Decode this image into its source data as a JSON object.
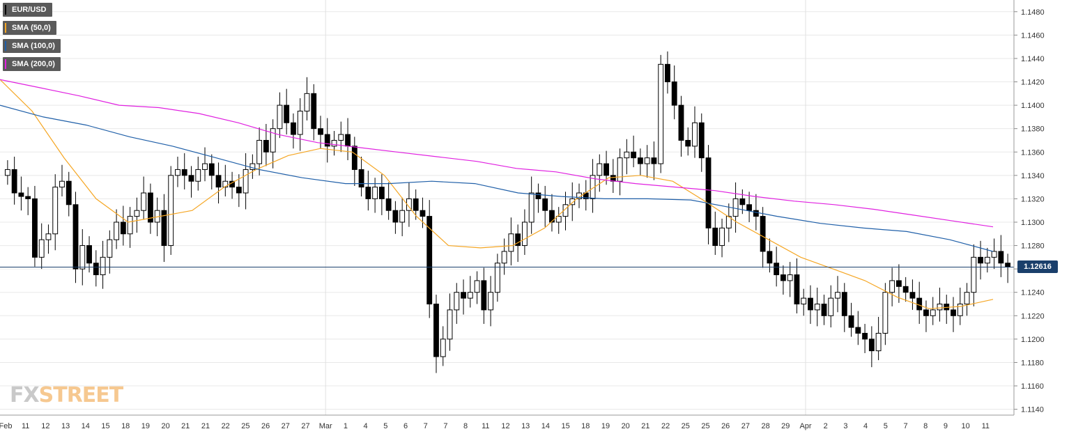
{
  "legend": [
    {
      "label": "EUR/USD",
      "color": "#000000"
    },
    {
      "label": "SMA (50,0)",
      "color": "#f5a623"
    },
    {
      "label": "SMA (100,0)",
      "color": "#1f5fa8"
    },
    {
      "label": "SMA (200,0)",
      "color": "#e020e0"
    }
  ],
  "logo": {
    "part1": "FX",
    "part2": "STREET"
  },
  "current_price_label": "1.12616",
  "chart_data": {
    "type": "candlestick",
    "title": "",
    "xlabel": "",
    "ylabel": "",
    "ylim": [
      1.1135,
      1.149
    ],
    "grid": true,
    "legend_position": "top-left",
    "current_price": 1.12616,
    "y_ticks": [
      1.114,
      1.116,
      1.118,
      1.12,
      1.122,
      1.124,
      1.126,
      1.128,
      1.13,
      1.132,
      1.134,
      1.136,
      1.138,
      1.14,
      1.142,
      1.144,
      1.146,
      1.148
    ],
    "x_tick_labels": [
      "Feb",
      "11",
      "12",
      "13",
      "14",
      "15",
      "18",
      "19",
      "20",
      "21",
      "21",
      "22",
      "25",
      "26",
      "27",
      "27",
      "Mar",
      "1",
      "4",
      "5",
      "6",
      "7",
      "7",
      "8",
      "11",
      "12",
      "13",
      "14",
      "15",
      "18",
      "19",
      "20",
      "21",
      "22",
      "25",
      "25",
      "26",
      "27",
      "28",
      "29",
      "Apr",
      "2",
      "3",
      "4",
      "5",
      "7",
      "8",
      "9",
      "10",
      "11"
    ],
    "close_series": [
      1.1345,
      1.1325,
      1.1322,
      1.132,
      1.127,
      1.1285,
      1.129,
      1.133,
      1.1335,
      1.1315,
      1.126,
      1.128,
      1.1265,
      1.1255,
      1.127,
      1.1285,
      1.13,
      1.129,
      1.1305,
      1.131,
      1.1325,
      1.13,
      1.131,
      1.128,
      1.134,
      1.1345,
      1.134,
      1.1335,
      1.1345,
      1.135,
      1.134,
      1.133,
      1.1335,
      1.133,
      1.1325,
      1.1345,
      1.135,
      1.137,
      1.136,
      1.138,
      1.14,
      1.1385,
      1.1375,
      1.1395,
      1.141,
      1.138,
      1.1375,
      1.1365,
      1.137,
      1.1375,
      1.1365,
      1.1345,
      1.133,
      1.132,
      1.133,
      1.132,
      1.131,
      1.13,
      1.131,
      1.132,
      1.131,
      1.1305,
      1.123,
      1.1185,
      1.12,
      1.1225,
      1.124,
      1.1235,
      1.124,
      1.125,
      1.1225,
      1.124,
      1.1265,
      1.1275,
      1.129,
      1.128,
      1.13,
      1.1325,
      1.132,
      1.131,
      1.13,
      1.1305,
      1.1315,
      1.132,
      1.1325,
      1.132,
      1.134,
      1.135,
      1.134,
      1.1335,
      1.1355,
      1.136,
      1.1355,
      1.135,
      1.1355,
      1.135,
      1.1435,
      1.142,
      1.14,
      1.137,
      1.1365,
      1.1385,
      1.1355,
      1.1295,
      1.128,
      1.1295,
      1.1305,
      1.132,
      1.1315,
      1.131,
      1.1305,
      1.1275,
      1.1265,
      1.1255,
      1.125,
      1.1255,
      1.123,
      1.1235,
      1.1225,
      1.123,
      1.122,
      1.1235,
      1.124,
      1.122,
      1.121,
      1.1205,
      1.12,
      1.119,
      1.1205,
      1.124,
      1.125,
      1.1245,
      1.124,
      1.1235,
      1.1225,
      1.122,
      1.1225,
      1.123,
      1.1225,
      1.122,
      1.123,
      1.124,
      1.127,
      1.1265,
      1.127,
      1.1275,
      1.1265,
      1.1262
    ],
    "series": [
      {
        "name": "SMA (50,0)",
        "color": "#f5a623",
        "values": [
          1.1422,
          1.1395,
          1.1355,
          1.132,
          1.13,
          1.1305,
          1.131,
          1.133,
          1.1345,
          1.1357,
          1.1363,
          1.136,
          1.134,
          1.1305,
          1.128,
          1.1278,
          1.128,
          1.1295,
          1.132,
          1.1338,
          1.134,
          1.1335,
          1.1318,
          1.13,
          1.1285,
          1.127,
          1.126,
          1.125,
          1.1236,
          1.1226,
          1.1228,
          1.1234
        ]
      },
      {
        "name": "SMA (100,0)",
        "color": "#1f5fa8",
        "values": [
          1.14,
          1.139,
          1.1383,
          1.1373,
          1.1365,
          1.1355,
          1.1345,
          1.1338,
          1.1333,
          1.1333,
          1.1335,
          1.1333,
          1.1325,
          1.1322,
          1.132,
          1.132,
          1.1319,
          1.1312,
          1.1305,
          1.1299,
          1.1295,
          1.1292,
          1.1285,
          1.1275
        ]
      },
      {
        "name": "SMA (200,0)",
        "color": "#e020e0",
        "values": [
          1.1422,
          1.1415,
          1.1408,
          1.14,
          1.1398,
          1.1393,
          1.1385,
          1.1375,
          1.1368,
          1.1364,
          1.136,
          1.1356,
          1.1352,
          1.1346,
          1.1343,
          1.1337,
          1.1333,
          1.133,
          1.1327,
          1.1322,
          1.1318,
          1.1315,
          1.1311,
          1.1306,
          1.1301,
          1.1296
        ]
      }
    ]
  }
}
